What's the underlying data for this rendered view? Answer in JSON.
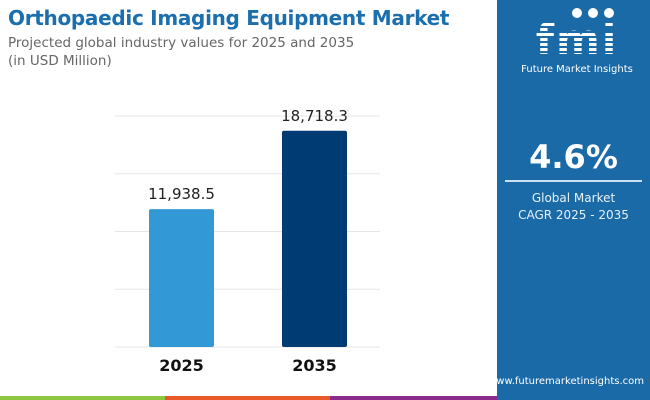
{
  "header": {
    "title": "Orthopaedic Imaging Equipment Market",
    "subtitle_line1": "Projected global industry values for 2025 and 2035",
    "subtitle_line2": "(in USD Million)"
  },
  "panel": {
    "logo_text": "fmi",
    "brand": "Future Market Insights",
    "cagr": "4.6%",
    "label_line1": "Global Market",
    "label_line2": "CAGR 2025 - 2035",
    "url": "www.futuremarketinsights.com"
  },
  "colors": {
    "panel": "#1a6aa8",
    "bar_2025": "#3399d6",
    "bar_2035": "#003b73",
    "stripe": [
      "#8dc63f",
      "#e8582a",
      "#8a2a8a"
    ]
  },
  "chart_data": {
    "type": "bar",
    "categories": [
      "2025",
      "2035"
    ],
    "values": [
      11938.5,
      18718.3
    ],
    "value_labels": [
      "11,938.5",
      "18,718.3"
    ],
    "ylim": [
      0,
      20000
    ],
    "grid": true
  }
}
